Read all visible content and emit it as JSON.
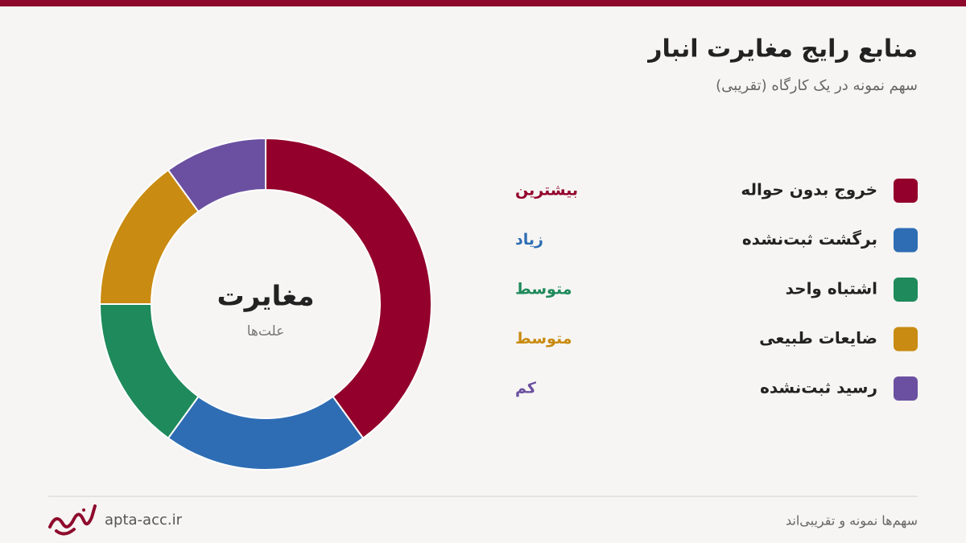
{
  "chart_data": {
    "type": "donut",
    "title": "منابع رایج مغایرت انبار",
    "subtitle": "سهم نمونه در یک کارگاه (تقریبی)",
    "center_title": "مغایرت",
    "center_subtitle": "علت‌ها",
    "categories": [
      "خروج بدون حواله",
      "برگشت ثبت‌نشده",
      "اشتباه واحد",
      "ضایعات طبیعی",
      "رسید ثبت‌نشده"
    ],
    "values": [
      40,
      20,
      15,
      15,
      10
    ],
    "colors": [
      "#93002b",
      "#2e6db4",
      "#1f8a5b",
      "#c98b12",
      "#6b50a1"
    ],
    "levels": [
      "بیشترین",
      "زیاد",
      "متوسط",
      "متوسط",
      "کم"
    ]
  },
  "footer": {
    "site": "apta-acc.ir",
    "note": "سهم‌ها نمونه و تقریبی‌اند"
  }
}
